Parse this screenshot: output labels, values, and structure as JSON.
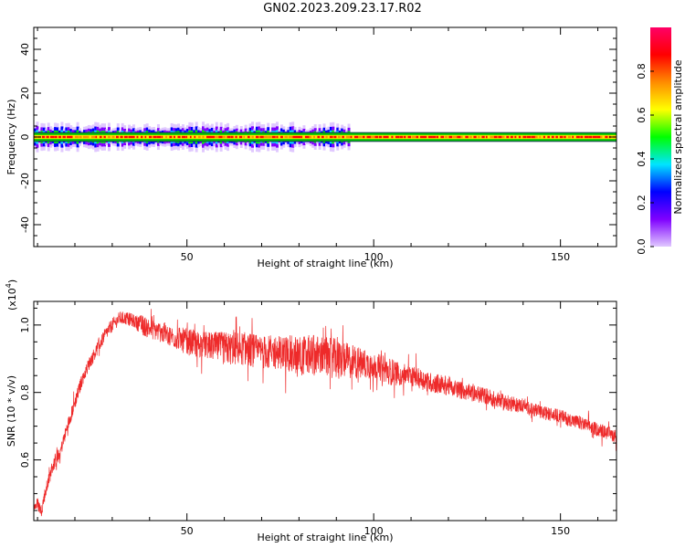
{
  "title": "GN02.2023.209.23.17.R02",
  "chart_data": [
    {
      "type": "heatmap",
      "xlabel": "Height of straight line (km)",
      "ylabel": "Frequency (Hz)",
      "xlim": [
        9,
        165
      ],
      "ylim": [
        -50,
        50
      ],
      "x_ticks": [
        50,
        100,
        150
      ],
      "y_ticks": [
        -40,
        -20,
        0,
        20,
        40
      ],
      "grid": false,
      "band": {
        "center_frequency": 0,
        "half_width": 2,
        "noisy_x_range": [
          9,
          93
        ],
        "noisy_half_width": 5,
        "clean_x_range": [
          93,
          165
        ]
      },
      "colorbar": {
        "label": "Normalized spectral amplitude",
        "range": [
          0,
          1
        ],
        "ticks": [
          "0.0",
          "0.2",
          "0.4",
          "0.6",
          "0.8"
        ],
        "colors": [
          "#e0c8ff",
          "#7f00ff",
          "#0000ff",
          "#00e5ff",
          "#00ff00",
          "#ffff00",
          "#ff8c00",
          "#ff0000",
          "#ff0066"
        ]
      }
    },
    {
      "type": "line",
      "xlabel": "Height of straight line (km)",
      "ylabel": "SNR (10 * v/v)",
      "y_multiplier": "(x10",
      "y_multiplier_exp": "4",
      "y_multiplier_close": ")",
      "xlim": [
        9,
        165
      ],
      "ylim": [
        0.42,
        1.07
      ],
      "x_ticks": [
        50,
        100,
        150
      ],
      "y_ticks": [
        "0.6",
        "0.8",
        "1.0"
      ],
      "y_tick_values": [
        0.6,
        0.8,
        1.0
      ],
      "color": "#ee2a2a",
      "series": [
        {
          "x": [
            9,
            10,
            11,
            12,
            14,
            16,
            18,
            20,
            22,
            24,
            26,
            28,
            30,
            32,
            34,
            36,
            38,
            40,
            45,
            50,
            55,
            60,
            65,
            70,
            75,
            80,
            85,
            90,
            95,
            100,
            105,
            110,
            115,
            120,
            125,
            130,
            135,
            140,
            145,
            150,
            155,
            160,
            165
          ],
          "values": [
            0.46,
            0.47,
            0.45,
            0.5,
            0.58,
            0.62,
            0.7,
            0.77,
            0.84,
            0.89,
            0.93,
            0.97,
            1.0,
            1.02,
            1.02,
            1.01,
            1.0,
            0.99,
            0.97,
            0.95,
            0.94,
            0.93,
            0.93,
            0.92,
            0.92,
            0.91,
            0.91,
            0.9,
            0.89,
            0.88,
            0.86,
            0.85,
            0.83,
            0.82,
            0.8,
            0.79,
            0.77,
            0.76,
            0.74,
            0.73,
            0.71,
            0.69,
            0.67
          ],
          "noise_amplitude": [
            0.01,
            0.02,
            0.02,
            0.02,
            0.02,
            0.02,
            0.02,
            0.02,
            0.02,
            0.02,
            0.02,
            0.02,
            0.02,
            0.02,
            0.02,
            0.02,
            0.03,
            0.03,
            0.03,
            0.04,
            0.04,
            0.05,
            0.05,
            0.05,
            0.05,
            0.06,
            0.06,
            0.06,
            0.05,
            0.04,
            0.04,
            0.03,
            0.03,
            0.03,
            0.025,
            0.025,
            0.025,
            0.02,
            0.02,
            0.02,
            0.02,
            0.02,
            0.02
          ]
        }
      ]
    }
  ]
}
